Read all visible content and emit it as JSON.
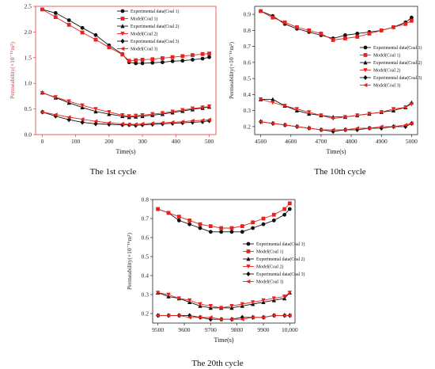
{
  "colors": {
    "experimental": "#111111",
    "model": "#e8231f",
    "axis_red": "#e03a3a",
    "axis_dark": "#222222"
  },
  "chart_data": [
    {
      "type": "line",
      "caption": "The 1st cycle",
      "xlabel": "Time(s)",
      "ylabel": "Permeability(×10⁻¹⁶m²)",
      "xlim": [
        -20,
        520
      ],
      "ylim": [
        0.0,
        2.5
      ],
      "xticks": [
        "0",
        "100",
        "200",
        "300",
        "400",
        "500"
      ],
      "yticks": [
        "0.0",
        "0.5",
        "1.0",
        "1.5",
        "2.0",
        "2.5"
      ],
      "axis_color": "red",
      "grid": false,
      "legend_position": "top-right",
      "series": [
        {
          "name": "Experimental data(Coal 1)",
          "kind": "exp",
          "marker": "circle",
          "x": [
            0,
            40,
            80,
            120,
            160,
            200,
            240,
            260,
            280,
            300,
            330,
            360,
            390,
            420,
            450,
            480,
            500
          ],
          "y": [
            2.44,
            2.37,
            2.23,
            2.08,
            1.94,
            1.74,
            1.57,
            1.41,
            1.39,
            1.39,
            1.4,
            1.41,
            1.43,
            1.44,
            1.46,
            1.48,
            1.51
          ]
        },
        {
          "name": "Model(Coal 1)",
          "kind": "model",
          "marker": "square",
          "x": [
            0,
            40,
            80,
            120,
            160,
            200,
            240,
            260,
            280,
            300,
            330,
            360,
            390,
            420,
            450,
            480,
            500
          ],
          "y": [
            2.44,
            2.29,
            2.14,
            1.99,
            1.85,
            1.7,
            1.56,
            1.44,
            1.45,
            1.46,
            1.47,
            1.49,
            1.51,
            1.53,
            1.55,
            1.57,
            1.58
          ]
        },
        {
          "name": "Experimental data(Coal 2)",
          "kind": "exp",
          "marker": "triangle",
          "x": [
            0,
            40,
            80,
            120,
            160,
            200,
            240,
            260,
            280,
            300,
            330,
            360,
            390,
            420,
            450,
            480,
            500
          ],
          "y": [
            0.82,
            0.72,
            0.62,
            0.53,
            0.45,
            0.4,
            0.36,
            0.34,
            0.35,
            0.36,
            0.38,
            0.4,
            0.43,
            0.46,
            0.49,
            0.52,
            0.54
          ]
        },
        {
          "name": "Model(Coal 2)",
          "kind": "model",
          "marker": "triangle-down",
          "x": [
            0,
            40,
            80,
            120,
            160,
            200,
            240,
            260,
            280,
            300,
            330,
            360,
            390,
            420,
            450,
            480,
            500
          ],
          "y": [
            0.81,
            0.73,
            0.65,
            0.57,
            0.5,
            0.44,
            0.38,
            0.36,
            0.37,
            0.38,
            0.4,
            0.42,
            0.45,
            0.48,
            0.51,
            0.53,
            0.55
          ]
        },
        {
          "name": "Experimental data(Coal 3)",
          "kind": "exp",
          "marker": "diamond",
          "x": [
            0,
            40,
            80,
            120,
            160,
            200,
            240,
            260,
            280,
            300,
            330,
            360,
            390,
            420,
            450,
            480,
            500
          ],
          "y": [
            0.44,
            0.36,
            0.29,
            0.24,
            0.21,
            0.2,
            0.19,
            0.19,
            0.18,
            0.19,
            0.2,
            0.21,
            0.22,
            0.23,
            0.24,
            0.25,
            0.27
          ]
        },
        {
          "name": "Model(Coal 3)",
          "kind": "model",
          "marker": "left-triangle",
          "x": [
            0,
            40,
            80,
            120,
            160,
            200,
            240,
            260,
            280,
            300,
            330,
            360,
            390,
            420,
            450,
            480,
            500
          ],
          "y": [
            0.44,
            0.39,
            0.34,
            0.3,
            0.26,
            0.23,
            0.21,
            0.2,
            0.2,
            0.21,
            0.22,
            0.23,
            0.24,
            0.25,
            0.27,
            0.28,
            0.29
          ]
        }
      ]
    },
    {
      "type": "line",
      "caption": "The 10th cycle",
      "xlabel": "Time(s)",
      "ylabel": "Permeability(×10⁻¹⁶m²)",
      "xlim": [
        4480,
        5020
      ],
      "ylim": [
        0.15,
        0.95
      ],
      "xticks": [
        "4500",
        "4600",
        "4700",
        "4800",
        "4900",
        "5000"
      ],
      "yticks": [
        "0.2",
        "0.3",
        "0.4",
        "0.5",
        "0.6",
        "0.7",
        "0.8",
        "0.9"
      ],
      "axis_color": "dark",
      "grid": false,
      "legend_position": "right",
      "series": [
        {
          "name": "Experimental data(Coal 1)",
          "kind": "exp",
          "marker": "circle",
          "x": [
            4500,
            4540,
            4580,
            4620,
            4660,
            4700,
            4740,
            4780,
            4820,
            4860,
            4900,
            4940,
            4980,
            5000
          ],
          "y": [
            0.92,
            0.89,
            0.84,
            0.81,
            0.79,
            0.77,
            0.75,
            0.77,
            0.78,
            0.79,
            0.8,
            0.82,
            0.85,
            0.88
          ]
        },
        {
          "name": "Model(Coal 1)",
          "kind": "model",
          "marker": "square",
          "x": [
            4500,
            4540,
            4580,
            4620,
            4660,
            4700,
            4740,
            4780,
            4820,
            4860,
            4900,
            4940,
            4980,
            5000
          ],
          "y": [
            0.92,
            0.88,
            0.85,
            0.82,
            0.8,
            0.78,
            0.74,
            0.75,
            0.76,
            0.78,
            0.8,
            0.82,
            0.84,
            0.86
          ]
        },
        {
          "name": "Experimental data(Coal 2)",
          "kind": "exp",
          "marker": "triangle",
          "x": [
            4500,
            4540,
            4580,
            4620,
            4660,
            4700,
            4740,
            4780,
            4820,
            4860,
            4900,
            4940,
            4980,
            5000
          ],
          "y": [
            0.37,
            0.37,
            0.33,
            0.3,
            0.28,
            0.27,
            0.26,
            0.26,
            0.27,
            0.28,
            0.29,
            0.3,
            0.32,
            0.35
          ]
        },
        {
          "name": "Model(Coal 2)",
          "kind": "model",
          "marker": "triangle-down",
          "x": [
            4500,
            4540,
            4580,
            4620,
            4660,
            4700,
            4740,
            4780,
            4820,
            4860,
            4900,
            4940,
            4980,
            5000
          ],
          "y": [
            0.37,
            0.35,
            0.33,
            0.31,
            0.29,
            0.27,
            0.25,
            0.26,
            0.27,
            0.28,
            0.29,
            0.31,
            0.32,
            0.34
          ]
        },
        {
          "name": "Experimental data(Coal 3)",
          "kind": "exp",
          "marker": "diamond",
          "x": [
            4500,
            4540,
            4580,
            4620,
            4660,
            4700,
            4740,
            4780,
            4820,
            4860,
            4900,
            4940,
            4980,
            5000
          ],
          "y": [
            0.23,
            0.22,
            0.21,
            0.2,
            0.19,
            0.18,
            0.17,
            0.18,
            0.18,
            0.19,
            0.19,
            0.2,
            0.2,
            0.22
          ]
        },
        {
          "name": "Model(Coal 3)",
          "kind": "model",
          "marker": "left-triangle",
          "x": [
            4500,
            4540,
            4580,
            4620,
            4660,
            4700,
            4740,
            4780,
            4820,
            4860,
            4900,
            4940,
            4980,
            5000
          ],
          "y": [
            0.23,
            0.22,
            0.21,
            0.2,
            0.19,
            0.18,
            0.18,
            0.18,
            0.19,
            0.19,
            0.2,
            0.2,
            0.21,
            0.22
          ]
        }
      ]
    },
    {
      "type": "line",
      "caption": "The 20th cycle",
      "xlabel": "Time(s)",
      "ylabel": "Permeability(×10⁻¹⁶m²)",
      "xlim": [
        9480,
        10020
      ],
      "ylim": [
        0.15,
        0.8
      ],
      "xticks": [
        "9500",
        "9600",
        "9700",
        "9800",
        "9900",
        "10,000"
      ],
      "yticks": [
        "0.2",
        "0.3",
        "0.4",
        "0.5",
        "0.6",
        "0.7",
        "0.8"
      ],
      "axis_color": "dark",
      "grid": false,
      "legend_position": "right",
      "series": [
        {
          "name": "Experimental data(Coal 1)",
          "kind": "exp",
          "marker": "circle",
          "x": [
            9500,
            9540,
            9580,
            9620,
            9660,
            9700,
            9740,
            9780,
            9820,
            9860,
            9900,
            9940,
            9980,
            10000
          ],
          "y": [
            0.75,
            0.73,
            0.69,
            0.67,
            0.65,
            0.63,
            0.63,
            0.63,
            0.63,
            0.65,
            0.67,
            0.69,
            0.72,
            0.75
          ]
        },
        {
          "name": "Model(Coal 1)",
          "kind": "model",
          "marker": "square",
          "x": [
            9500,
            9540,
            9580,
            9620,
            9660,
            9700,
            9740,
            9780,
            9820,
            9860,
            9900,
            9940,
            9980,
            10000
          ],
          "y": [
            0.75,
            0.73,
            0.71,
            0.69,
            0.67,
            0.66,
            0.65,
            0.65,
            0.66,
            0.68,
            0.7,
            0.72,
            0.75,
            0.78
          ]
        },
        {
          "name": "Experimental data(Coal 2)",
          "kind": "exp",
          "marker": "triangle",
          "x": [
            9500,
            9540,
            9580,
            9620,
            9660,
            9700,
            9740,
            9780,
            9820,
            9860,
            9900,
            9940,
            9980,
            10000
          ],
          "y": [
            0.31,
            0.29,
            0.28,
            0.26,
            0.24,
            0.23,
            0.23,
            0.23,
            0.24,
            0.25,
            0.26,
            0.27,
            0.28,
            0.31
          ]
        },
        {
          "name": "Model(Coal 2)",
          "kind": "model",
          "marker": "triangle-down",
          "x": [
            9500,
            9540,
            9580,
            9620,
            9660,
            9700,
            9740,
            9780,
            9820,
            9860,
            9900,
            9940,
            9980,
            10000
          ],
          "y": [
            0.31,
            0.3,
            0.28,
            0.27,
            0.25,
            0.24,
            0.23,
            0.24,
            0.25,
            0.26,
            0.27,
            0.28,
            0.29,
            0.31
          ]
        },
        {
          "name": "Experimental data(Coal 3)",
          "kind": "exp",
          "marker": "diamond",
          "x": [
            9500,
            9540,
            9580,
            9620,
            9660,
            9700,
            9740,
            9780,
            9820,
            9860,
            9900,
            9940,
            9980,
            10000
          ],
          "y": [
            0.19,
            0.19,
            0.19,
            0.19,
            0.18,
            0.17,
            0.17,
            0.17,
            0.18,
            0.18,
            0.18,
            0.19,
            0.19,
            0.19
          ]
        },
        {
          "name": "Model(Coal 3)",
          "kind": "model",
          "marker": "left-triangle",
          "x": [
            9500,
            9540,
            9580,
            9620,
            9660,
            9700,
            9740,
            9780,
            9820,
            9860,
            9900,
            9940,
            9980,
            10000
          ],
          "y": [
            0.19,
            0.19,
            0.19,
            0.18,
            0.18,
            0.18,
            0.17,
            0.17,
            0.17,
            0.18,
            0.18,
            0.19,
            0.19,
            0.19
          ]
        }
      ]
    }
  ]
}
